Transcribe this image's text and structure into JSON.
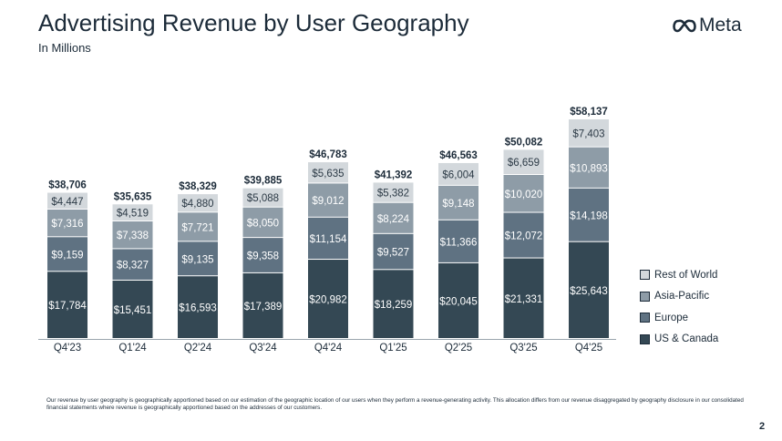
{
  "header": {
    "title": "Advertising Revenue by User Geography",
    "subtitle": "In Millions",
    "logo_text": "Meta"
  },
  "chart_data": {
    "type": "bar",
    "stacked": true,
    "categories": [
      "Q4'23",
      "Q1'24",
      "Q2'24",
      "Q3'24",
      "Q4'24",
      "Q1'25",
      "Q2'25",
      "Q3'25",
      "Q4'25"
    ],
    "totals": [
      "$38,706",
      "$35,635",
      "$38,329",
      "$39,885",
      "$46,783",
      "$41,392",
      "$46,563",
      "$50,082",
      "$58,137"
    ],
    "series": [
      {
        "name": "US & Canada",
        "color": "#344854",
        "values": [
          17784,
          15451,
          16593,
          17389,
          20982,
          18259,
          20045,
          21331,
          25643
        ],
        "labels": [
          "$17,784",
          "$15,451",
          "$16,593",
          "$17,389",
          "$20,982",
          "$18,259",
          "$20,045",
          "$21,331",
          "$25,643"
        ]
      },
      {
        "name": "Europe",
        "color": "#5f7282",
        "values": [
          9159,
          8327,
          9135,
          9358,
          11154,
          9527,
          11366,
          12072,
          14198
        ],
        "labels": [
          "$9,159",
          "$8,327",
          "$9,135",
          "$9,358",
          "$11,154",
          "$9,527",
          "$11,366",
          "$12,072",
          "$14,198"
        ]
      },
      {
        "name": "Asia-Pacific",
        "color": "#8e9ca7",
        "values": [
          7316,
          7338,
          7721,
          8050,
          9012,
          8224,
          9148,
          10020,
          10893
        ],
        "labels": [
          "$7,316",
          "$7,338",
          "$7,721",
          "$8,050",
          "$9,012",
          "$8,224",
          "$9,148",
          "$10,020",
          "$10,893"
        ]
      },
      {
        "name": "Rest of World",
        "color": "#d3d8dc",
        "values": [
          4447,
          4519,
          4880,
          5088,
          5635,
          5382,
          6004,
          6659,
          7403
        ],
        "labels": [
          "$4,447",
          "$4,519",
          "$4,880",
          "$5,088",
          "$5,635",
          "$5,382",
          "$6,004",
          "$6,659",
          "$7,403"
        ]
      }
    ],
    "legend_order": [
      "Rest of World",
      "Asia-Pacific",
      "Europe",
      "US & Canada"
    ],
    "legend_position": "right",
    "grid": false,
    "ylim": [
      0,
      58137
    ]
  },
  "footnote": "Our revenue by user geography is geographically apportioned based on our estimation of the geographic location of our users when they perform a revenue-generating activity. This allocation differs from our revenue disaggregated by geography disclosure in our consolidated financial statements where revenue is geographically apportioned based on the addresses of our customers.",
  "page_number": "2"
}
